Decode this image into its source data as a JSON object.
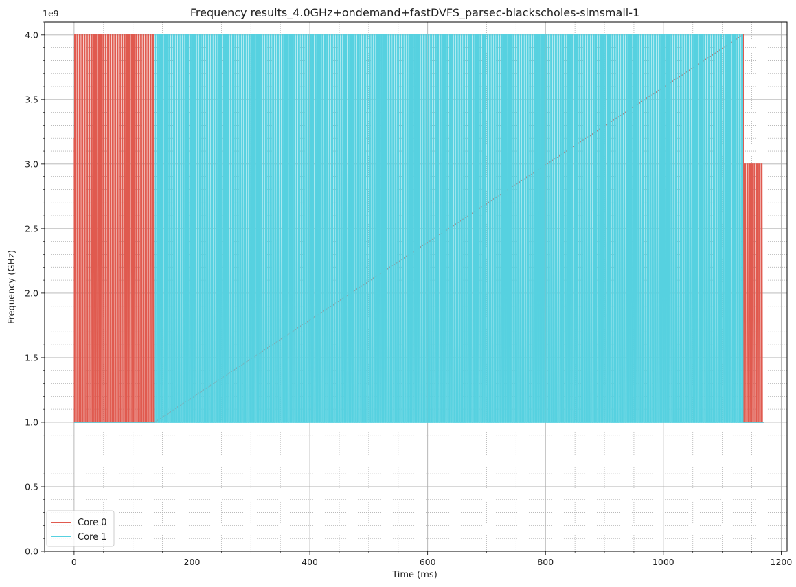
{
  "chart_data": {
    "type": "line",
    "title": "Frequency results_4.0GHz+ondemand+fastDVFS_parsec-blackscholes-simsmall-1",
    "xlabel": "Time (ms)",
    "ylabel": "Frequency (GHz)",
    "y_offset_label": "1e9",
    "xlim": [
      -50,
      1210
    ],
    "ylim": [
      0,
      4100000000
    ],
    "x_ticks": [
      0,
      200,
      400,
      600,
      800,
      1000,
      1200
    ],
    "x_tick_labels": [
      "0",
      "200",
      "400",
      "600",
      "800",
      "1000",
      "1200"
    ],
    "y_ticks": [
      0,
      500000000,
      1000000000,
      1500000000,
      2000000000,
      2500000000,
      3000000000,
      3500000000,
      4000000000
    ],
    "y_tick_labels": [
      "0.0",
      "0.5",
      "1.0",
      "1.5",
      "2.0",
      "2.5",
      "3.0",
      "3.5",
      "4.0"
    ],
    "grid": {
      "major": true,
      "minor": true
    },
    "legend_position": "lower-left",
    "series": [
      {
        "name": "Core 0",
        "color": "#e05a4f",
        "description_segments": [
          {
            "x_start": 0,
            "x_end": 1,
            "high": 3200000000,
            "low": 1000000000,
            "period": 1
          },
          {
            "x_start": 1,
            "x_end": 134,
            "high": 4000000000,
            "low": 1000000000,
            "period": 4
          },
          {
            "x_start": 134,
            "x_end": 1138,
            "high": 1000000000,
            "low": 1000000000,
            "period": 0
          },
          {
            "x_start": 1135,
            "x_end": 1138,
            "high": 4000000000,
            "low": 1000000000,
            "period": 3
          },
          {
            "x_start": 1138,
            "x_end": 1168,
            "high": 3000000000,
            "low": 1000000000,
            "period": 4
          }
        ]
      },
      {
        "name": "Core 1",
        "color": "#56d1e0",
        "description_segments": [
          {
            "x_start": 0,
            "x_end": 137,
            "high": 1000000000,
            "low": 1000000000,
            "period": 0
          },
          {
            "x_start": 137,
            "x_end": 1135,
            "high": 4000000000,
            "low": 1000000000,
            "period": 4
          },
          {
            "x_start": 1135,
            "x_end": 1170,
            "high": 1000000000,
            "low": 1000000000,
            "period": 0
          }
        ]
      }
    ]
  }
}
